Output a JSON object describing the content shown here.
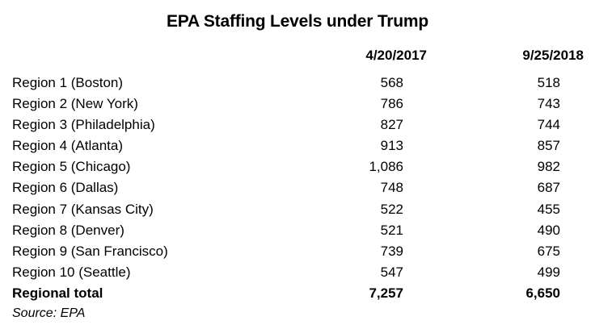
{
  "title": "EPA Staffing Levels under Trump",
  "colors": {
    "background": "#ffffff",
    "text": "#000000"
  },
  "chart_data": {
    "type": "table",
    "title": "EPA Staffing Levels under Trump",
    "columns": [
      "4/20/2017",
      "9/25/2018"
    ],
    "categories": [
      "Region 1 (Boston)",
      "Region 2 (New York)",
      "Region 3 (Philadelphia)",
      "Region 4 (Atlanta)",
      "Region 5 (Chicago)",
      "Region 6 (Dallas)",
      "Region 7 (Kansas City)",
      "Region 8 (Denver)",
      "Region 9 (San Francisco)",
      "Region 10 (Seattle)"
    ],
    "series": [
      {
        "name": "4/20/2017",
        "values": [
          568,
          786,
          827,
          913,
          1086,
          748,
          522,
          521,
          739,
          547
        ],
        "total": 7257
      },
      {
        "name": "9/25/2018",
        "values": [
          518,
          743,
          744,
          857,
          982,
          687,
          455,
          490,
          675,
          499
        ],
        "total": 6650
      }
    ],
    "total_row_label": "Regional total",
    "source": "Source: EPA",
    "layout": {
      "grid": false,
      "borders": false,
      "number_alignment": "right",
      "label_alignment": "left"
    }
  }
}
